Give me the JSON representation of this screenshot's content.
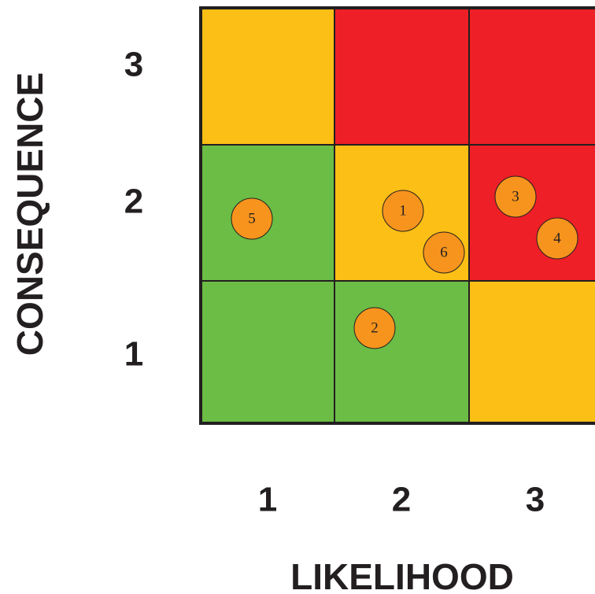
{
  "matrix": {
    "y_axis": {
      "label": "CONSEQUENCE",
      "levels": [
        "3",
        "2",
        "1"
      ]
    },
    "x_axis": {
      "label": "LIKELIHOOD",
      "levels": [
        "1",
        "2",
        "3"
      ]
    },
    "cell_colors": [
      [
        "#fbbf15",
        "#ee1f26",
        "#ee1f26"
      ],
      [
        "#6bbd45",
        "#fbbf15",
        "#ee1f26"
      ],
      [
        "#6bbd45",
        "#6bbd45",
        "#fbbf15"
      ]
    ],
    "risks": [
      "5",
      "1",
      "6",
      "3",
      "4",
      "2"
    ],
    "risk_color": "#f7941d"
  }
}
